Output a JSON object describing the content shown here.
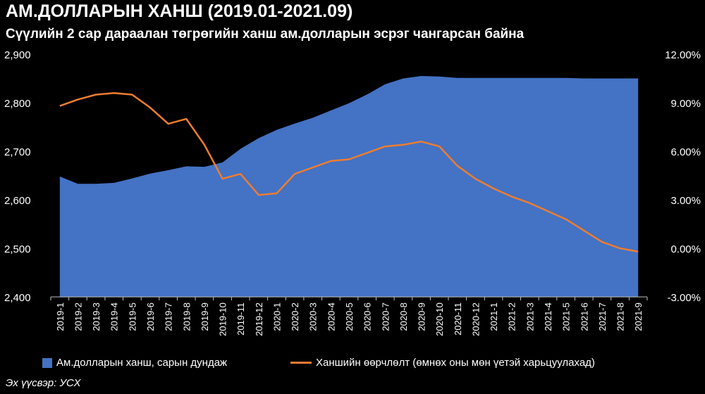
{
  "chart_data": {
    "type": "area",
    "title": "АМ.ДОЛЛАРЫН ХАНШ (2019.01-2021.09)",
    "subtitle": "Сүүлийн 2 сар дараалан төгрөгийн ханш ам.долларын эсрэг чангарсан байна",
    "categories": [
      "2019-1",
      "2019-2",
      "2019-3",
      "2019-4",
      "2019-5",
      "2019-6",
      "2019-7",
      "2019-8",
      "2019-9",
      "2019-10",
      "2019-11",
      "2019-12",
      "2020-1",
      "2020-2",
      "2020-3",
      "2020-4",
      "2020-5",
      "2020-6",
      "2020-7",
      "2020-8",
      "2020-9",
      "2020-10",
      "2020-11",
      "2020-12",
      "2021-1",
      "2021-2",
      "2021-3",
      "2021-4",
      "2021-5",
      "2021-6",
      "2021-7",
      "2021-8",
      "2021-9"
    ],
    "ylim_left": [
      2400,
      2900
    ],
    "ylim_right": [
      -3.0,
      12.0
    ],
    "left_ticks": [
      "2,400",
      "2,500",
      "2,600",
      "2,700",
      "2,800",
      "2,900"
    ],
    "right_ticks": [
      "-3.00%",
      "0.00%",
      "3.00%",
      "6.00%",
      "9.00%",
      "12.00%"
    ],
    "grid": false,
    "legend_position": "bottom",
    "series": [
      {
        "name": "Ам.долларын ханш, сарын дундаж",
        "type": "area",
        "axis": "left",
        "color": "#4472C4",
        "values": [
          2648,
          2633,
          2633,
          2635,
          2644,
          2654,
          2661,
          2669,
          2668,
          2677,
          2705,
          2727,
          2744,
          2757,
          2769,
          2784,
          2799,
          2817,
          2838,
          2850,
          2855,
          2854,
          2851,
          2851,
          2851,
          2851,
          2851,
          2851,
          2851,
          2850,
          2850,
          2850,
          2850
        ]
      },
      {
        "name": "Ханшийн өөрчлөлт (өмнөх оны мөн үетэй харьцуулахад)",
        "type": "line",
        "axis": "right",
        "color": "#ED7D31",
        "values": [
          8.8,
          9.2,
          9.5,
          9.6,
          9.5,
          8.7,
          7.7,
          8.0,
          6.4,
          4.3,
          4.6,
          3.3,
          3.4,
          4.6,
          5.0,
          5.4,
          5.5,
          5.9,
          6.3,
          6.4,
          6.6,
          6.3,
          5.1,
          4.3,
          3.7,
          3.2,
          2.8,
          2.3,
          1.8,
          1.1,
          0.4,
          0.0,
          -0.2
        ]
      }
    ]
  },
  "source": "Эх үүсвэр: УСХ"
}
